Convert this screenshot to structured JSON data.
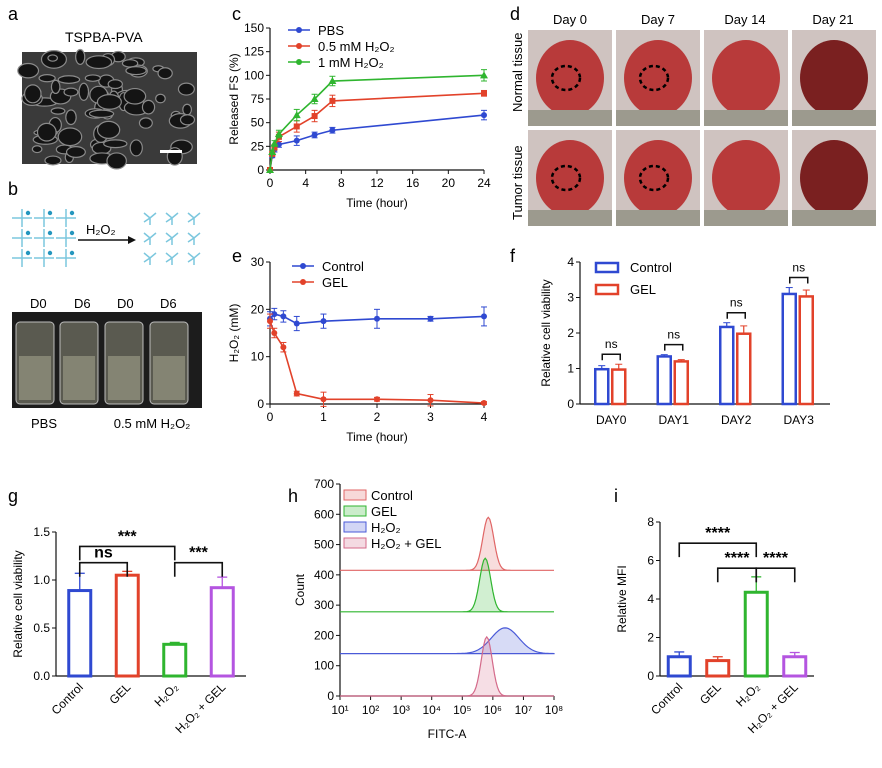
{
  "panels": {
    "a": {
      "letter": "a",
      "title": "TSPBA-PVA"
    },
    "b": {
      "letter": "b",
      "reagent": "H₂O₂",
      "vial_labels": [
        "D0",
        "D6",
        "D0",
        "D6"
      ],
      "conditions": [
        "PBS",
        "0.5 mM H₂O₂"
      ]
    },
    "c": {
      "letter": "c"
    },
    "d": {
      "letter": "d",
      "days": [
        "Day 0",
        "Day 7",
        "Day 14",
        "Day 21"
      ],
      "rows": [
        "Normal tissue",
        "Tumor tissue"
      ]
    },
    "e": {
      "letter": "e"
    },
    "f": {
      "letter": "f"
    },
    "g": {
      "letter": "g"
    },
    "h": {
      "letter": "h"
    },
    "i": {
      "letter": "i"
    }
  },
  "colors": {
    "blue": "#2f49d1",
    "red": "#e2422a",
    "green": "#2fb52f",
    "purple": "#b455e0",
    "tissue": "#b83a3a"
  },
  "chart_data": [
    {
      "panel": "c",
      "type": "line",
      "xlabel": "Time (hour)",
      "ylabel": "Released FS (%)",
      "xlim": [
        0,
        24
      ],
      "ylim": [
        0,
        150
      ],
      "xticks": [
        0,
        4,
        8,
        12,
        16,
        20,
        24
      ],
      "yticks": [
        0,
        25,
        50,
        75,
        100,
        125,
        150
      ],
      "series": [
        {
          "name": "PBS",
          "color": "#2f49d1",
          "x": [
            0,
            0.25,
            0.5,
            1,
            3,
            5,
            7,
            24
          ],
          "y": [
            0,
            15,
            22,
            27,
            31,
            37,
            42,
            58
          ],
          "err": [
            0,
            2,
            3,
            3,
            5,
            3,
            3,
            5
          ]
        },
        {
          "name": "0.5 mM H₂O₂",
          "color": "#e2422a",
          "x": [
            0,
            0.25,
            0.5,
            1,
            3,
            5,
            7,
            24
          ],
          "y": [
            0,
            17,
            24,
            35,
            46,
            57,
            73,
            81
          ],
          "err": [
            0,
            2,
            3,
            5,
            6,
            6,
            6,
            3
          ]
        },
        {
          "name": "1 mM H₂O₂",
          "color": "#2fb52f",
          "x": [
            0,
            0.25,
            0.5,
            1,
            3,
            5,
            7,
            24
          ],
          "y": [
            0,
            19,
            28,
            38,
            58,
            75,
            94,
            100
          ],
          "err": [
            0,
            2,
            3,
            4,
            6,
            5,
            5,
            6
          ]
        }
      ]
    },
    {
      "panel": "e",
      "type": "line",
      "xlabel": "Time (hour)",
      "ylabel": "H₂O₂ (mM)",
      "xlim": [
        0,
        4
      ],
      "ylim": [
        0,
        30
      ],
      "xticks": [
        0,
        1,
        2,
        3,
        4
      ],
      "yticks": [
        0,
        10,
        20,
        30
      ],
      "series": [
        {
          "name": "Control",
          "color": "#2f49d1",
          "x": [
            0,
            0.08,
            0.25,
            0.5,
            1,
            2,
            3,
            4
          ],
          "y": [
            18,
            19,
            18.5,
            17,
            17.5,
            18,
            18,
            18.5
          ],
          "err": [
            1.5,
            1.2,
            1.2,
            1.5,
            1.5,
            2,
            0.5,
            2
          ]
        },
        {
          "name": "GEL",
          "color": "#e2422a",
          "x": [
            0,
            0.08,
            0.25,
            0.5,
            1,
            2,
            3,
            4
          ],
          "y": [
            17.5,
            15,
            12,
            2.2,
            1,
            1,
            0.8,
            0.2
          ],
          "err": [
            1.5,
            1,
            1,
            0.5,
            1.5,
            0.4,
            1.2,
            0.3
          ]
        }
      ]
    },
    {
      "panel": "f",
      "type": "bar",
      "ylabel": "Relative cell viability",
      "ylim": [
        0,
        4
      ],
      "yticks": [
        0,
        1,
        2,
        3,
        4
      ],
      "categories": [
        "DAY0",
        "DAY1",
        "DAY2",
        "DAY3"
      ],
      "series": [
        {
          "name": "Control",
          "color": "#2f49d1",
          "values": [
            0.98,
            1.34,
            2.17,
            3.1
          ],
          "err": [
            0.1,
            0.05,
            0.12,
            0.18
          ]
        },
        {
          "name": "GEL",
          "color": "#e2422a",
          "values": [
            0.97,
            1.2,
            1.98,
            3.03
          ],
          "err": [
            0.15,
            0.05,
            0.22,
            0.18
          ]
        }
      ],
      "annotations": [
        "ns",
        "ns",
        "ns",
        "ns"
      ]
    },
    {
      "panel": "g",
      "type": "bar",
      "ylabel": "Relative cell viability",
      "ylim": [
        0,
        1.5
      ],
      "yticks": [
        "0.0",
        "0.5",
        "1.0",
        "1.5"
      ],
      "categories": [
        "Control",
        "GEL",
        "H₂O₂",
        "H₂O₂ + GEL"
      ],
      "colors": [
        "#2f49d1",
        "#e2422a",
        "#2fb52f",
        "#b455e0"
      ],
      "values": [
        0.89,
        1.05,
        0.33,
        0.92
      ],
      "err": [
        0.18,
        0.04,
        0.02,
        0.11
      ],
      "annotations": [
        "***",
        "ns",
        "***"
      ]
    },
    {
      "panel": "h",
      "type": "area",
      "xlabel": "FITC-A",
      "ylabel": "Count",
      "ylim": [
        0,
        700
      ],
      "yticks": [
        0,
        100,
        200,
        300,
        400,
        500,
        600,
        700
      ],
      "xticks": [
        "10¹",
        "10²",
        "10³",
        "10⁴",
        "10⁵",
        "10⁶",
        "10⁷",
        "10⁸"
      ],
      "legend": [
        "Control",
        "GEL",
        "H₂O₂",
        "H₂O₂ + GEL"
      ],
      "series": [
        {
          "name": "Control",
          "color": "#e06666",
          "offset": 415,
          "peak_log10": 5.85,
          "peak": 590
        },
        {
          "name": "GEL",
          "color": "#2fb52f",
          "offset": 278,
          "peak_log10": 5.75,
          "peak": 455
        },
        {
          "name": "H₂O₂",
          "color": "#4a5ad8",
          "offset": 140,
          "peak_log10": 6.4,
          "peak": 225
        },
        {
          "name": "H₂O₂ + GEL",
          "color": "#d46a8a",
          "offset": 0,
          "peak_log10": 5.8,
          "peak": 195
        }
      ]
    },
    {
      "panel": "i",
      "type": "bar",
      "ylabel": "Relative MFI",
      "ylim": [
        0,
        8
      ],
      "yticks": [
        0,
        2,
        4,
        6,
        8
      ],
      "categories": [
        "Control",
        "GEL",
        "H₂O₂",
        "H₂O₂ + GEL"
      ],
      "colors": [
        "#2f49d1",
        "#e2422a",
        "#2fb52f",
        "#b455e0"
      ],
      "values": [
        1.0,
        0.8,
        4.35,
        1.0
      ],
      "err": [
        0.25,
        0.2,
        0.8,
        0.22
      ],
      "annotations": [
        "****",
        "****",
        "****"
      ]
    }
  ]
}
